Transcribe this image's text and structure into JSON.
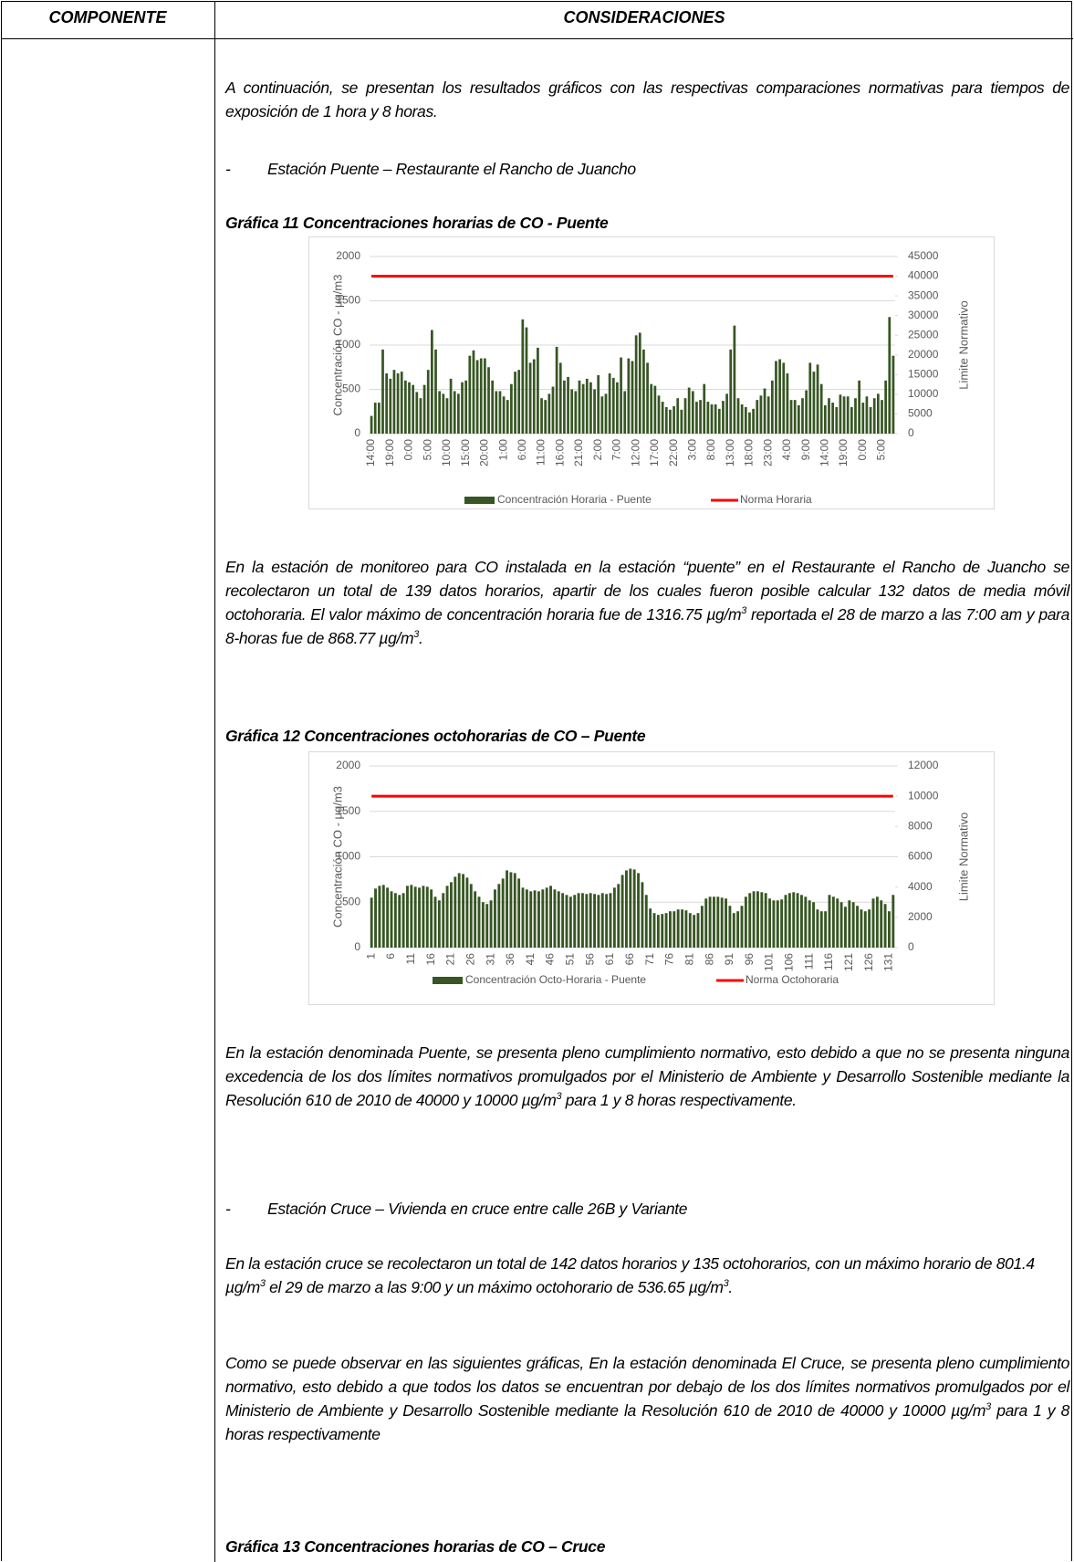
{
  "table": {
    "headers": [
      "COMPONENTE",
      "CONSIDERACIONES"
    ]
  },
  "document": {
    "intro": "A continuación, se presentan los resultados gráficos con las respectivas comparaciones normativas para tiempos de exposición de 1 hora y 8 horas.",
    "bullets": [
      {
        "marker": "-",
        "text": "Estación Puente – Restaurante el Rancho de Juancho"
      },
      {
        "marker": "-",
        "text": "Estación Cruce – Vivienda en cruce entre calle 26B y Variante"
      }
    ],
    "captions": [
      "Gráfica 11 Concentraciones horarias de CO - Puente",
      "Gráfica 12 Concentraciones octohorarias de CO – Puente",
      "Gráfica 13 Concentraciones horarias de CO – Cruce"
    ],
    "paragraphs": [
      [
        "En la estación de monitoreo para CO instalada en la estación “puente” en el Restaurante el Rancho de Juancho se recolectaron un total de 139 datos horarios, apartir de los cuales fueron posible calcular 132 datos de media móvil octohoraria. El valor máximo de concentración horaria fue de 1316.75 µg/m",
        "3",
        " reportada el 28 de marzo a las 7:00 am y para 8-horas fue de 868.77 µg/m",
        "3",
        "."
      ],
      [
        "En la estación denominada Puente, se presenta pleno cumplimiento normativo, esto debido a que no se presenta ninguna excedencia de los dos límites normativos promulgados por el Ministerio de Ambiente y Desarrollo Sostenible mediante la Resolución 610 de 2010 de 40000 y 10000 µg/m",
        "3",
        " para 1 y 8 horas respectivamente."
      ],
      [
        "En la estación cruce se recolectaron un total de 142 datos horarios y 135 octohorarios, con un máximo horario de 801.4 µg/m",
        "3",
        " el 29 de marzo a las 9:00 y un máximo octohorario de 536.65 µg/m",
        "3",
        "."
      ],
      [
        "Como se puede observar en las siguientes gráficas, En la estación denominada El Cruce, se presenta pleno cumplimiento normativo, esto debido a que todos los datos se encuentran por debajo de los dos límites normativos promulgados por el Ministerio de Ambiente y Desarrollo Sostenible mediante la Resolución 610 de 2010 de 40000 y 10000 µg/m",
        "3",
        " para 1 y 8 horas respectivamente"
      ]
    ]
  },
  "chart_data": [
    {
      "type": "bar",
      "ylabel": "Concentración CO - µg/m3",
      "y2label": "Limite Normativo",
      "legend": "bottom",
      "ylim": [
        0,
        2000
      ],
      "yticks": [
        0,
        500,
        1000,
        1500,
        2000
      ],
      "y2lim": [
        0,
        45000
      ],
      "y2ticks": [
        0,
        5000,
        10000,
        15000,
        20000,
        25000,
        30000,
        35000,
        40000,
        45000
      ],
      "categories": [
        "14:00",
        null,
        null,
        null,
        null,
        "19:00",
        null,
        null,
        null,
        null,
        "0:00",
        null,
        null,
        null,
        null,
        "5:00",
        null,
        null,
        null,
        null,
        "10:00",
        null,
        null,
        null,
        null,
        "15:00",
        null,
        null,
        null,
        null,
        "20:00",
        null,
        null,
        null,
        null,
        "1:00",
        null,
        null,
        null,
        null,
        "6:00",
        null,
        null,
        null,
        null,
        "11:00",
        null,
        null,
        null,
        null,
        "16:00",
        null,
        null,
        null,
        null,
        "21:00",
        null,
        null,
        null,
        null,
        "2:00",
        null,
        null,
        null,
        null,
        "7:00",
        null,
        null,
        null,
        null,
        "12:00",
        null,
        null,
        null,
        null,
        "17:00",
        null,
        null,
        null,
        null,
        "22:00",
        null,
        null,
        null,
        null,
        "3:00",
        null,
        null,
        null,
        null,
        "8:00",
        null,
        null,
        null,
        null,
        "13:00",
        null,
        null,
        null,
        null,
        "18:00",
        null,
        null,
        null,
        null,
        "23:00",
        null,
        null,
        null,
        null,
        "4:00",
        null,
        null,
        null,
        null,
        "9:00",
        null,
        null,
        null,
        null,
        "14:00",
        null,
        null,
        null,
        null,
        "19:00",
        null,
        null,
        null,
        null,
        "0:00",
        null,
        null,
        null,
        null,
        "5:00",
        null,
        null,
        null
      ],
      "series": [
        {
          "name": "Concentración Horaria - Puente",
          "type": "bar",
          "color": "#375623",
          "values": [
            200,
            350,
            350,
            950,
            680,
            620,
            720,
            680,
            700,
            600,
            580,
            550,
            470,
            400,
            550,
            720,
            1170,
            950,
            480,
            450,
            400,
            620,
            480,
            450,
            580,
            600,
            880,
            940,
            830,
            850,
            850,
            750,
            600,
            480,
            480,
            420,
            380,
            560,
            700,
            720,
            1290,
            1200,
            800,
            840,
            970,
            400,
            380,
            450,
            530,
            980,
            800,
            600,
            640,
            500,
            480,
            600,
            560,
            620,
            580,
            500,
            660,
            420,
            450,
            680,
            630,
            580,
            860,
            480,
            850,
            820,
            1110,
            1140,
            950,
            800,
            560,
            540,
            430,
            360,
            300,
            270,
            310,
            400,
            270,
            400,
            520,
            480,
            360,
            380,
            560,
            360,
            330,
            330,
            280,
            370,
            450,
            950,
            1220,
            400,
            330,
            300,
            240,
            280,
            380,
            430,
            510,
            420,
            600,
            820,
            840,
            800,
            680,
            380,
            380,
            320,
            400,
            490,
            800,
            700,
            780,
            560,
            320,
            400,
            350,
            300,
            440,
            420,
            420,
            300,
            400,
            600,
            350,
            420,
            300,
            400,
            450,
            380,
            600,
            1316.75,
            880
          ]
        },
        {
          "name": "Norma Horaria",
          "type": "line",
          "axis": "y2",
          "color": "#ff0000",
          "values": [
            40000,
            40000,
            40000,
            40000,
            40000,
            40000,
            40000,
            40000,
            40000,
            40000,
            40000,
            40000,
            40000,
            40000,
            40000,
            40000,
            40000,
            40000,
            40000,
            40000,
            40000,
            40000,
            40000,
            40000,
            40000,
            40000,
            40000,
            40000,
            40000,
            40000,
            40000,
            40000,
            40000,
            40000,
            40000,
            40000,
            40000,
            40000,
            40000,
            40000,
            40000,
            40000,
            40000,
            40000,
            40000,
            40000,
            40000,
            40000,
            40000,
            40000,
            40000,
            40000,
            40000,
            40000,
            40000,
            40000,
            40000,
            40000,
            40000,
            40000,
            40000,
            40000,
            40000,
            40000,
            40000,
            40000,
            40000,
            40000,
            40000,
            40000,
            40000,
            40000,
            40000,
            40000,
            40000,
            40000,
            40000,
            40000,
            40000,
            40000,
            40000,
            40000,
            40000,
            40000,
            40000,
            40000,
            40000,
            40000,
            40000,
            40000,
            40000,
            40000,
            40000,
            40000,
            40000,
            40000,
            40000,
            40000,
            40000,
            40000,
            40000,
            40000,
            40000,
            40000,
            40000,
            40000,
            40000,
            40000,
            40000,
            40000,
            40000,
            40000,
            40000,
            40000,
            40000,
            40000,
            40000,
            40000,
            40000,
            40000,
            40000,
            40000,
            40000,
            40000,
            40000,
            40000,
            40000,
            40000,
            40000,
            40000,
            40000,
            40000,
            40000,
            40000,
            40000,
            40000,
            40000,
            40000,
            40000
          ]
        }
      ]
    },
    {
      "type": "bar",
      "ylabel": "Concentración CO - µg/m3",
      "y2label": "Limite Normativo",
      "legend": "bottom",
      "ylim": [
        0,
        2000
      ],
      "yticks": [
        0,
        500,
        1000,
        1500,
        2000
      ],
      "y2lim": [
        0,
        12000
      ],
      "y2ticks": [
        0,
        2000,
        4000,
        6000,
        8000,
        10000,
        12000
      ],
      "categories": [
        1,
        null,
        null,
        null,
        null,
        6,
        null,
        null,
        null,
        null,
        11,
        null,
        null,
        null,
        null,
        16,
        null,
        null,
        null,
        null,
        21,
        null,
        null,
        null,
        null,
        26,
        null,
        null,
        null,
        null,
        31,
        null,
        null,
        null,
        null,
        36,
        null,
        null,
        null,
        null,
        41,
        null,
        null,
        null,
        null,
        46,
        null,
        null,
        null,
        null,
        51,
        null,
        null,
        null,
        null,
        56,
        null,
        null,
        null,
        null,
        61,
        null,
        null,
        null,
        null,
        66,
        null,
        null,
        null,
        null,
        71,
        null,
        null,
        null,
        null,
        76,
        null,
        null,
        null,
        null,
        81,
        null,
        null,
        null,
        null,
        86,
        null,
        null,
        null,
        null,
        91,
        null,
        null,
        null,
        null,
        96,
        null,
        null,
        null,
        null,
        101,
        null,
        null,
        null,
        null,
        106,
        null,
        null,
        null,
        null,
        111,
        null,
        null,
        null,
        null,
        116,
        null,
        null,
        null,
        null,
        121,
        null,
        null,
        null,
        null,
        126,
        null,
        null,
        null,
        null,
        131,
        null
      ],
      "series": [
        {
          "name": "Concentración Octo-Horaria - Puente",
          "type": "bar",
          "color": "#375623",
          "values": [
            550,
            650,
            680,
            690,
            660,
            620,
            600,
            580,
            600,
            680,
            690,
            670,
            660,
            680,
            670,
            640,
            560,
            520,
            600,
            680,
            720,
            780,
            820,
            810,
            770,
            700,
            620,
            560,
            500,
            480,
            520,
            640,
            700,
            760,
            850,
            830,
            820,
            760,
            660,
            640,
            620,
            630,
            620,
            640,
            660,
            680,
            640,
            620,
            600,
            580,
            560,
            580,
            600,
            600,
            590,
            600,
            590,
            580,
            600,
            590,
            600,
            660,
            700,
            800,
            850,
            868.77,
            860,
            820,
            720,
            580,
            430,
            380,
            360,
            370,
            380,
            400,
            400,
            420,
            420,
            410,
            380,
            360,
            380,
            460,
            540,
            560,
            560,
            560,
            550,
            540,
            460,
            380,
            400,
            460,
            560,
            600,
            620,
            620,
            610,
            600,
            540,
            520,
            520,
            530,
            580,
            600,
            610,
            600,
            580,
            560,
            520,
            500,
            420,
            400,
            400,
            580,
            560,
            540,
            500,
            450,
            520,
            500,
            460,
            420,
            400,
            420,
            540,
            560,
            520,
            480,
            400,
            580
          ]
        },
        {
          "name": "Norma Octohoraria",
          "type": "line",
          "axis": "y2",
          "color": "#ff0000",
          "values": [
            10000,
            10000,
            10000,
            10000,
            10000,
            10000,
            10000,
            10000,
            10000,
            10000,
            10000,
            10000,
            10000,
            10000,
            10000,
            10000,
            10000,
            10000,
            10000,
            10000,
            10000,
            10000,
            10000,
            10000,
            10000,
            10000,
            10000,
            10000,
            10000,
            10000,
            10000,
            10000,
            10000,
            10000,
            10000,
            10000,
            10000,
            10000,
            10000,
            10000,
            10000,
            10000,
            10000,
            10000,
            10000,
            10000,
            10000,
            10000,
            10000,
            10000,
            10000,
            10000,
            10000,
            10000,
            10000,
            10000,
            10000,
            10000,
            10000,
            10000,
            10000,
            10000,
            10000,
            10000,
            10000,
            10000,
            10000,
            10000,
            10000,
            10000,
            10000,
            10000,
            10000,
            10000,
            10000,
            10000,
            10000,
            10000,
            10000,
            10000,
            10000,
            10000,
            10000,
            10000,
            10000,
            10000,
            10000,
            10000,
            10000,
            10000,
            10000,
            10000,
            10000,
            10000,
            10000,
            10000,
            10000,
            10000,
            10000,
            10000,
            10000,
            10000,
            10000,
            10000,
            10000,
            10000,
            10000,
            10000,
            10000,
            10000,
            10000,
            10000,
            10000,
            10000,
            10000,
            10000,
            10000,
            10000,
            10000,
            10000,
            10000,
            10000,
            10000,
            10000,
            10000,
            10000,
            10000,
            10000,
            10000,
            10000,
            10000,
            10000
          ]
        }
      ]
    }
  ]
}
